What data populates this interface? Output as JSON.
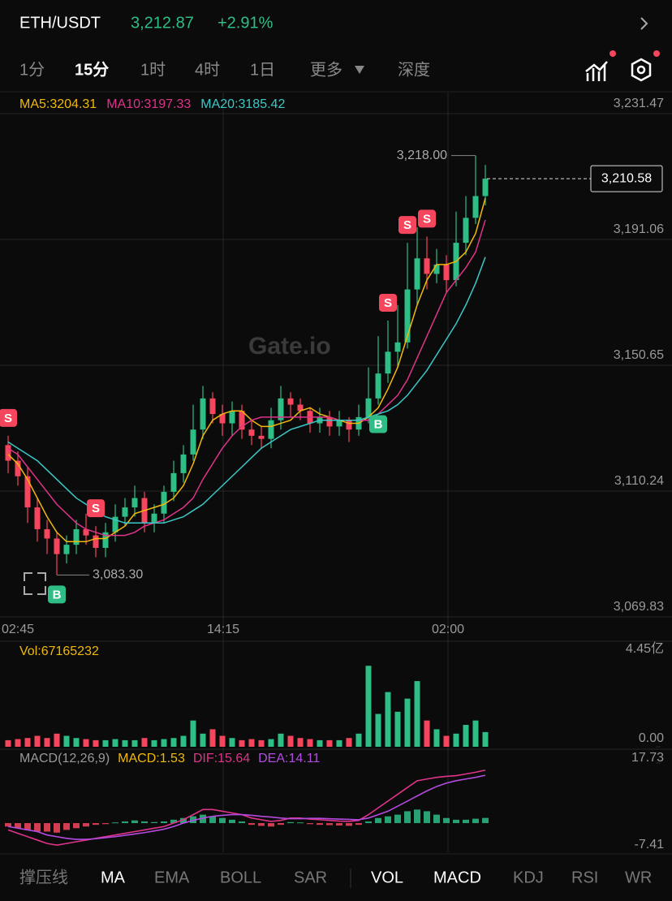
{
  "header": {
    "symbol": "ETH/USDT",
    "price": "3,212.87",
    "change": "+2.91%"
  },
  "tabs": [
    "1分",
    "15分",
    "1时",
    "4时",
    "1日",
    "更多",
    "深度"
  ],
  "indicator_tabs": [
    "撑压线",
    "MA",
    "EMA",
    "BOLL",
    "SAR",
    "VOL",
    "MACD",
    "KDJ",
    "RSI",
    "WR"
  ],
  "watermark": "Gate.io",
  "chart_data": {
    "type": "candlestick",
    "up_color": "#2ebd85",
    "down_color": "#f6465d",
    "open": [
      3125,
      3120,
      3115,
      3105,
      3098,
      3095,
      3090,
      3093,
      3098,
      3096,
      3092,
      3097,
      3102,
      3105,
      3108,
      3100,
      3103,
      3110,
      3116,
      3122,
      3130,
      3140,
      3135,
      3132,
      3136,
      3130,
      3128,
      3127,
      3133,
      3140,
      3138,
      3136,
      3132,
      3134,
      3131,
      3133,
      3130,
      3134,
      3140,
      3148,
      3155,
      3158,
      3175,
      3185,
      3180,
      3183,
      3178,
      3190,
      3198,
      3205
    ],
    "high": [
      3128,
      3123,
      3118,
      3108,
      3101,
      3097,
      3096,
      3101,
      3103,
      3099,
      3100,
      3106,
      3108,
      3112,
      3110,
      3106,
      3112,
      3120,
      3125,
      3138,
      3144,
      3142,
      3138,
      3139,
      3138,
      3133,
      3131,
      3137,
      3144,
      3142,
      3140,
      3137,
      3137,
      3136,
      3136,
      3134,
      3138,
      3150,
      3160,
      3165,
      3170,
      3190,
      3195,
      3192,
      3188,
      3186,
      3200,
      3205,
      3218,
      3215
    ],
    "low": [
      3116,
      3112,
      3100,
      3094,
      3090,
      3083.3,
      3087,
      3090,
      3093,
      3089,
      3089,
      3094,
      3099,
      3102,
      3097,
      3097,
      3100,
      3107,
      3113,
      3120,
      3127,
      3132,
      3128,
      3128,
      3127,
      3125,
      3124,
      3124,
      3130,
      3134,
      3133,
      3129,
      3129,
      3128,
      3128,
      3126,
      3128,
      3132,
      3138,
      3145,
      3150,
      3156,
      3170,
      3175,
      3177,
      3174,
      3176,
      3186,
      3196,
      3202
    ],
    "close": [
      3120,
      3115,
      3105,
      3098,
      3095,
      3090,
      3093,
      3098,
      3096,
      3092,
      3097,
      3102,
      3105,
      3108,
      3100,
      3103,
      3110,
      3116,
      3122,
      3130,
      3140,
      3135,
      3132,
      3136,
      3130,
      3128,
      3127,
      3133,
      3140,
      3138,
      3136,
      3132,
      3134,
      3131,
      3133,
      3130,
      3134,
      3140,
      3148,
      3155,
      3158,
      3175,
      3185,
      3180,
      3183,
      3178,
      3190,
      3198,
      3205,
      3210.58
    ],
    "signals": [
      "S",
      null,
      null,
      null,
      null,
      "B",
      null,
      null,
      null,
      "S",
      null,
      null,
      null,
      null,
      null,
      null,
      null,
      null,
      null,
      null,
      null,
      null,
      null,
      null,
      null,
      null,
      null,
      null,
      null,
      null,
      null,
      null,
      null,
      null,
      null,
      null,
      null,
      null,
      "B",
      "S",
      null,
      "S",
      null,
      "S",
      null,
      null,
      null,
      null,
      null,
      null
    ],
    "ma_series": [
      {
        "name": "MA5:3204.31",
        "color": "#f0b90b",
        "values": [
          3122,
          3119,
          3114,
          3108,
          3102,
          3097,
          3094,
          3094,
          3094,
          3095,
          3095,
          3097,
          3099,
          3103,
          3104,
          3105,
          3106,
          3108,
          3112,
          3119,
          3128,
          3133,
          3135,
          3136,
          3136,
          3133,
          3131,
          3131,
          3132,
          3133,
          3136,
          3137,
          3135,
          3134,
          3133,
          3132,
          3132,
          3134,
          3137,
          3143,
          3150,
          3160,
          3170,
          3178,
          3183,
          3183,
          3184,
          3187,
          3193,
          3204.31
        ]
      },
      {
        "name": "MA10:3197.33",
        "color": "#e0338a",
        "values": [
          3124,
          3122,
          3118,
          3114,
          3110,
          3106,
          3103,
          3100,
          3098,
          3097,
          3096,
          3096,
          3096,
          3097,
          3099,
          3100,
          3101,
          3103,
          3105,
          3108,
          3114,
          3119,
          3124,
          3128,
          3131,
          3133,
          3134,
          3134,
          3134,
          3134,
          3134,
          3134,
          3134,
          3134,
          3133,
          3133,
          3133,
          3133,
          3135,
          3138,
          3141,
          3146,
          3153,
          3160,
          3167,
          3174,
          3178,
          3182,
          3187,
          3197.33
        ]
      },
      {
        "name": "MA20:3185.42",
        "color": "#3cc8c8",
        "values": [
          3126,
          3124,
          3122,
          3120,
          3117,
          3114,
          3111,
          3108,
          3106,
          3104,
          3102,
          3101,
          3100,
          3100,
          3100,
          3100,
          3100,
          3101,
          3102,
          3104,
          3106,
          3109,
          3112,
          3115,
          3118,
          3121,
          3124,
          3126,
          3128,
          3130,
          3131,
          3132,
          3133,
          3133,
          3133,
          3133,
          3133,
          3134,
          3135,
          3136,
          3138,
          3141,
          3145,
          3149,
          3154,
          3159,
          3164,
          3170,
          3177,
          3185.42
        ]
      }
    ],
    "ylim": [
      3069.83,
      3231.47
    ],
    "yticks": [
      {
        "value": 3231.47,
        "label": "3,231.47"
      },
      {
        "value": 3191.06,
        "label": "3,191.06"
      },
      {
        "value": 3150.65,
        "label": "3,150.65"
      },
      {
        "value": 3110.24,
        "label": "3,110.24"
      },
      {
        "value": 3069.83,
        "label": "3,069.83"
      }
    ],
    "xtick_labels": [
      "02:45",
      "14:15",
      "02:00"
    ],
    "high_label": {
      "value": 3218,
      "label": "3,218.00"
    },
    "low_label": {
      "value": 3083.3,
      "label": "3,083.30"
    },
    "last_label": {
      "value": 3210.58,
      "label": "3,210.58"
    },
    "volume": {
      "title": "Vol:67165232",
      "color": "#f0b90b",
      "ylim": [
        0,
        445000000
      ],
      "yticks": [
        {
          "value": 445000000,
          "label": "4.45亿"
        },
        {
          "value": 0,
          "label": "0.00"
        }
      ],
      "values": [
        30000000,
        35000000,
        40000000,
        50000000,
        40000000,
        60000000,
        50000000,
        40000000,
        35000000,
        30000000,
        30000000,
        35000000,
        30000000,
        30000000,
        40000000,
        30000000,
        35000000,
        40000000,
        50000000,
        120000000,
        60000000,
        80000000,
        50000000,
        40000000,
        30000000,
        35000000,
        30000000,
        35000000,
        60000000,
        50000000,
        40000000,
        35000000,
        30000000,
        30000000,
        30000000,
        40000000,
        60000000,
        370000000,
        150000000,
        250000000,
        160000000,
        220000000,
        300000000,
        120000000,
        80000000,
        50000000,
        60000000,
        100000000,
        120000000,
        67165232
      ]
    },
    "macd": {
      "title": "MACD(12,26,9)",
      "macd_label": "MACD:1.53",
      "ylim": [
        -7.41,
        17.73
      ],
      "yticks": [
        17.73,
        -7.41
      ],
      "histogram": [
        -1,
        -1.5,
        -2,
        -2.5,
        -2.5,
        -2.8,
        -2,
        -1.5,
        -1,
        -0.5,
        -0.3,
        0.2,
        0.5,
        0.8,
        0.5,
        0.3,
        0.5,
        1,
        1.5,
        2,
        2.5,
        2,
        1.5,
        1,
        0.5,
        -0.5,
        -0.8,
        -1,
        -0.5,
        0.3,
        0.2,
        -0.3,
        -0.5,
        -0.6,
        -0.7,
        -0.8,
        -0.5,
        0.5,
        1.5,
        2,
        2.5,
        3.5,
        4,
        3.5,
        2.5,
        1.5,
        1,
        1,
        1.3,
        1.53
      ],
      "series": [
        {
          "name": "DIF:15.64",
          "color": "#e0338a",
          "values": [
            -2,
            -3,
            -4,
            -5,
            -6,
            -6.5,
            -6,
            -5.5,
            -5,
            -4.5,
            -4,
            -3.5,
            -3,
            -2.5,
            -2,
            -1.5,
            -1,
            0,
            1,
            2.5,
            4,
            4,
            3.5,
            3,
            2.5,
            1.5,
            1,
            0.5,
            0.8,
            1.5,
            1.5,
            1.2,
            1,
            0.8,
            0.6,
            0.5,
            0.8,
            2.5,
            4.5,
            6.5,
            8.5,
            10.5,
            12.5,
            13,
            13.5,
            13.8,
            14,
            14.5,
            15,
            15.64
          ]
        },
        {
          "name": "DEA:14.11",
          "color": "#b44be1",
          "values": [
            -1,
            -1.5,
            -2,
            -2.5,
            -3.5,
            -4,
            -4.5,
            -4.8,
            -4.8,
            -4.6,
            -4.3,
            -4,
            -3.6,
            -3.2,
            -2.8,
            -2.3,
            -1.8,
            -1,
            0,
            0.8,
            1.5,
            2,
            2.3,
            2.5,
            2.5,
            2.3,
            2,
            1.8,
            1.5,
            1.3,
            1.3,
            1.4,
            1.4,
            1.3,
            1.2,
            1.1,
            1,
            1.5,
            2.5,
            3.5,
            5,
            6.5,
            8,
            9.5,
            10.8,
            11.8,
            12.5,
            13,
            13.5,
            14.11
          ]
        }
      ]
    }
  }
}
